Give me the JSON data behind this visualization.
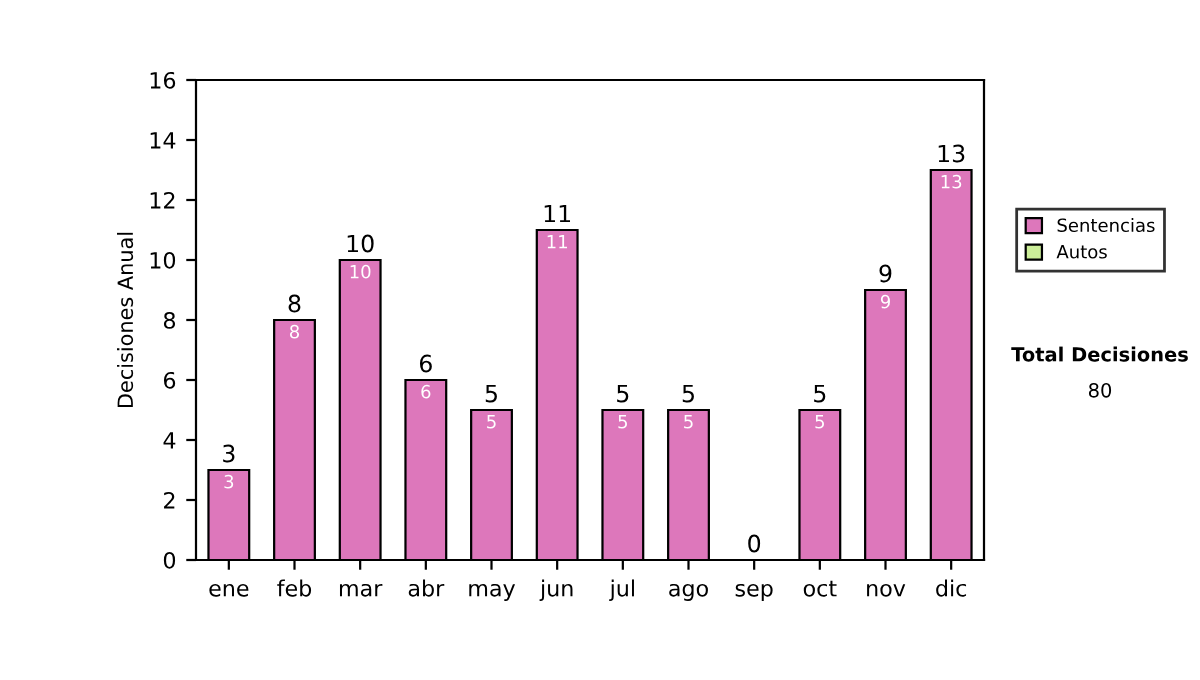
{
  "chart_data": {
    "type": "bar",
    "ylabel": "Decisiones Anual",
    "categories": [
      "ene",
      "feb",
      "mar",
      "abr",
      "may",
      "jun",
      "jul",
      "ago",
      "sep",
      "oct",
      "nov",
      "dic"
    ],
    "stacked": true,
    "series": [
      {
        "name": "Sentencias",
        "color": "#dd77bb",
        "values": [
          3,
          8,
          10,
          6,
          5,
          11,
          5,
          5,
          0,
          5,
          9,
          13
        ],
        "value_labels": [
          "3",
          "8",
          "10",
          "6",
          "5",
          "11",
          "5",
          "5",
          null,
          "5",
          "9",
          "13"
        ]
      },
      {
        "name": "Autos",
        "color": "#ccee99",
        "values": [
          0,
          0,
          0,
          0,
          0,
          0,
          0,
          0,
          0,
          0,
          0,
          0
        ]
      }
    ],
    "totals": [
      "3",
      "8",
      "10",
      "6",
      "5",
      "11",
      "5",
      "5",
      "0",
      "5",
      "9",
      "13"
    ],
    "ylim": [
      0,
      16
    ],
    "yticks": [
      0,
      2,
      4,
      6,
      8,
      10,
      12,
      14,
      16
    ],
    "legend": "right",
    "annotations": [
      "Total Decisiones",
      "80"
    ]
  }
}
